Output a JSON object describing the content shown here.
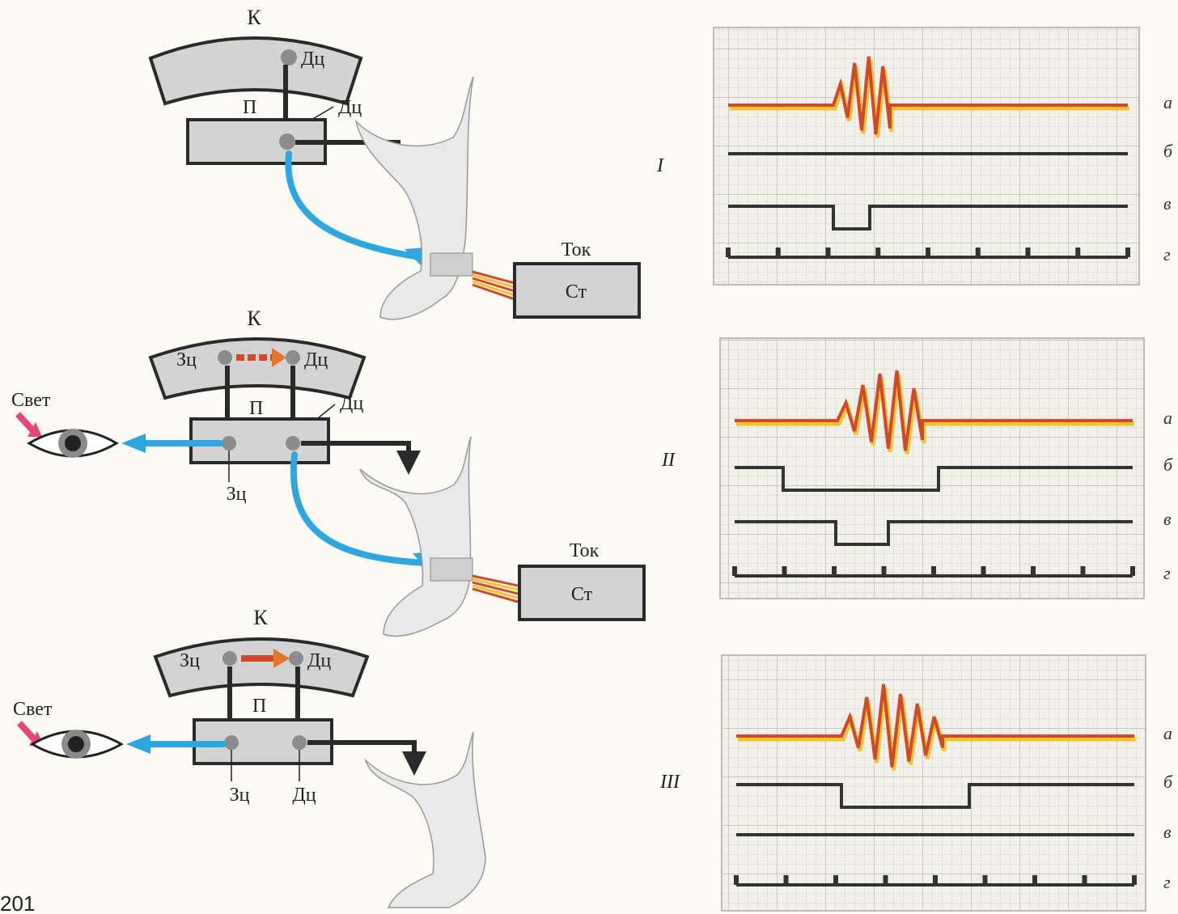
{
  "labels": {
    "cortex": "К",
    "subcortex": "П",
    "def_center": "Дц",
    "vis_center": "Зц",
    "light": "Свет",
    "current": "Ток",
    "stimulator": "Ст",
    "page_number": "201"
  },
  "panels": [
    {
      "numeral": "I"
    },
    {
      "numeral": "II"
    },
    {
      "numeral": "III"
    }
  ],
  "trace_labels": [
    "а",
    "б",
    "в",
    "г"
  ],
  "colors": {
    "nerve": "#2ea6df",
    "emg_red": "#cf4a2a",
    "emg_yellow": "#f2c230",
    "light_arrow": "#e8457a",
    "grid": "#c9c9c1"
  }
}
